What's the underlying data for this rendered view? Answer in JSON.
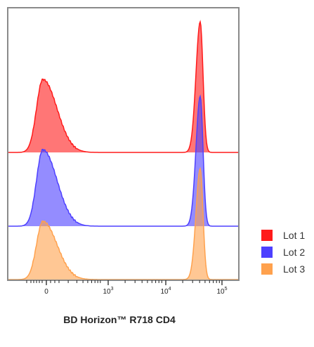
{
  "chart_data": {
    "type": "area",
    "title": "",
    "xlabel": "BD Horizon™ R718 CD4",
    "ylabel": "",
    "x_scale": "biexponential",
    "x_ticks": [
      {
        "value": 0,
        "label": "0",
        "exp": ""
      },
      {
        "value": 1000,
        "label": "10",
        "exp": "3"
      },
      {
        "value": 10000,
        "label": "10",
        "exp": "4"
      },
      {
        "value": 100000,
        "label": "10",
        "exp": "5"
      }
    ],
    "layout": "offset",
    "legend_position": "right",
    "series": [
      {
        "name": "Lot 1",
        "color": "#ff1a1a",
        "peaks": [
          {
            "center_log10": 1.3,
            "relative_height": 0.55
          },
          {
            "center_log10": 4.62,
            "relative_height": 1.0
          }
        ]
      },
      {
        "name": "Lot 2",
        "color": "#4d40ff",
        "peaks": [
          {
            "center_log10": 1.3,
            "relative_height": 0.75
          },
          {
            "center_log10": 4.6,
            "relative_height": 1.0
          }
        ]
      },
      {
        "name": "Lot 3",
        "color": "#ffa14d",
        "peaks": [
          {
            "center_log10": 1.3,
            "relative_height": 0.55
          },
          {
            "center_log10": 4.62,
            "relative_height": 1.0
          }
        ]
      }
    ]
  }
}
